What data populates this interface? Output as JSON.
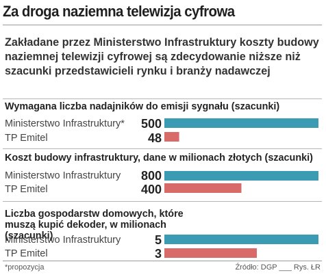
{
  "title": "Za droga naziemna telewizja cyfrowa",
  "subtitle": "Zakładane przez Ministerstwo Infrastruktury koszty budowy naziemnej telewizji cyfrowej są zdecydowanie niższe niż szacunki przedstawicieli rynku i branży nadawczej",
  "footnote": "*propozycja",
  "source": "Źródło: DGP",
  "author": "Rys. ŁR",
  "colors": {
    "ministry": "#3a9bb3",
    "emitel": "#d96a6a"
  },
  "chart_data": [
    {
      "type": "bar",
      "orientation": "horizontal",
      "title": "Wymagana liczba nadajników do emisji sygnału (szacunki)",
      "categories": [
        "Ministerstwo Infrastruktury*",
        "TP Emitel"
      ],
      "values": [
        500,
        48
      ],
      "value_labels": [
        "500",
        "48"
      ],
      "xlim": [
        0,
        500
      ]
    },
    {
      "type": "bar",
      "orientation": "horizontal",
      "title": "Koszt budowy infrastruktury, dane w milionach złotych (szacunki)",
      "categories": [
        "Ministerstwo Infrastruktury",
        "TP Emitel"
      ],
      "values": [
        800,
        400
      ],
      "value_labels": [
        "800",
        "400"
      ],
      "xlim": [
        0,
        800
      ]
    },
    {
      "type": "bar",
      "orientation": "horizontal",
      "title": "Liczba gospodarstw domowych, które muszą kupić dekoder, w milionach (szacunki)",
      "categories": [
        "Ministerstwo Infrastruktury",
        "TP Emitel"
      ],
      "values": [
        5,
        3
      ],
      "value_labels": [
        "5",
        "3"
      ],
      "xlim": [
        0,
        5
      ]
    }
  ]
}
